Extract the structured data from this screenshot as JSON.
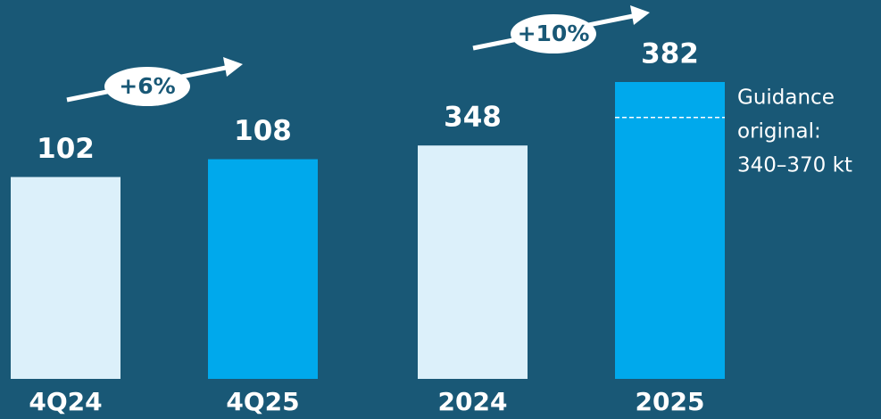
{
  "chart_data": [
    {
      "type": "bar",
      "categories": [
        "4Q24",
        "4Q25"
      ],
      "values": [
        102,
        108
      ],
      "colors": [
        "#dcf0fa",
        "#00a9ec"
      ],
      "ylim": [
        34,
        134
      ],
      "growth": "+6%"
    },
    {
      "type": "bar",
      "categories": [
        "2024",
        "2025"
      ],
      "values": [
        348,
        382
      ],
      "colors": [
        "#dcf0fa",
        "#00a9ec"
      ],
      "ylim": [
        223,
        382
      ],
      "growth": "+10%",
      "reference_line": 363,
      "annotation": [
        "Guidance",
        "original:",
        "340–370 kt"
      ]
    }
  ]
}
